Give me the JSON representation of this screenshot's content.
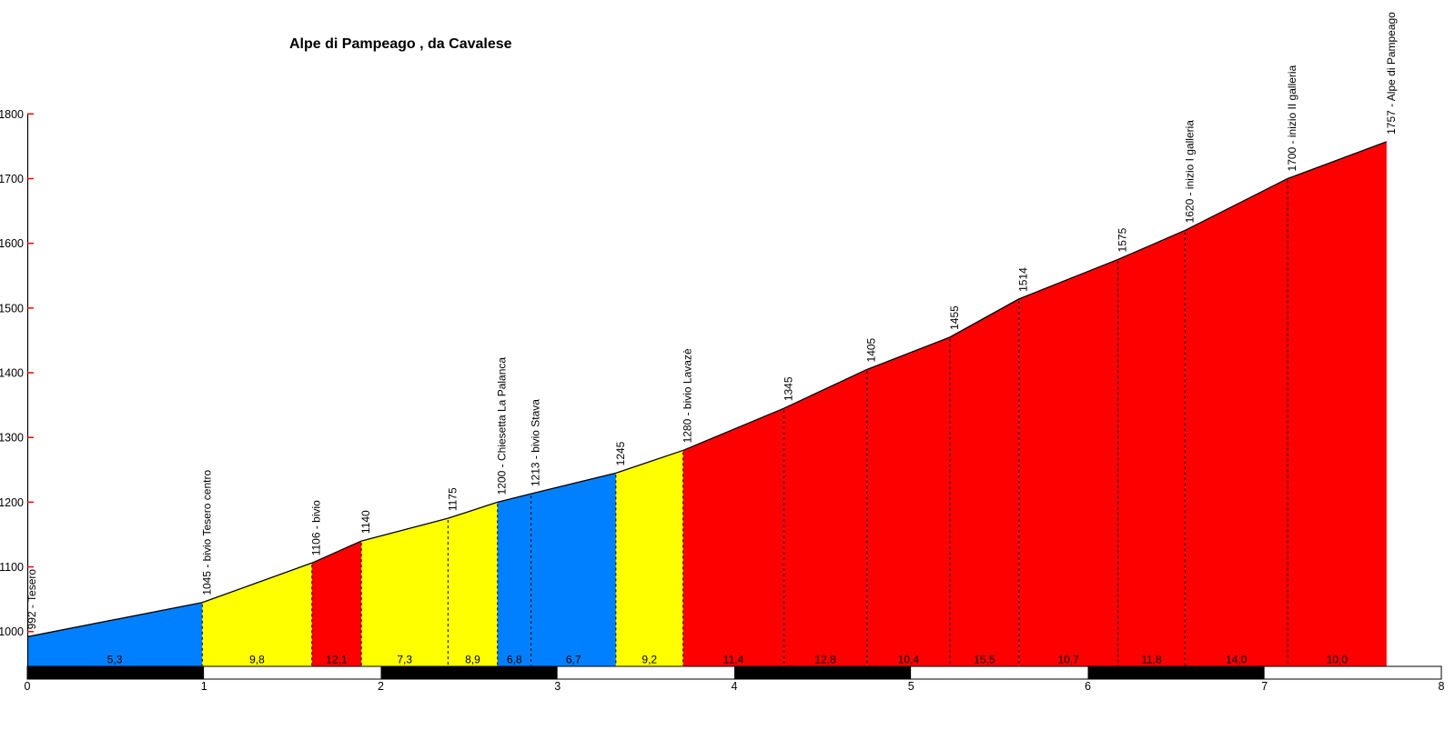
{
  "chart_data": {
    "type": "area",
    "title": "Alpe di Pampeago , da Cavalese",
    "xlabel": "",
    "ylabel": "",
    "x_unit": "km",
    "y_unit": "m",
    "xlim": [
      0,
      8
    ],
    "ylim": [
      946,
      1800
    ],
    "grid": "off",
    "legend": "none",
    "x_ticks": [
      "0",
      "1",
      "2",
      "3",
      "4",
      "5",
      "6",
      "7",
      "8"
    ],
    "y_ticks": [
      "1000",
      "1100",
      "1200",
      "1300",
      "1400",
      "1500",
      "1600",
      "1700",
      "1800"
    ],
    "points": [
      {
        "km": 0.0,
        "elevation": 992,
        "label": "992 - Tesero"
      },
      {
        "km": 0.99,
        "elevation": 1045,
        "label": "1045 - bivio Tesero centro"
      },
      {
        "km": 1.61,
        "elevation": 1106,
        "label": "1106 - bivio"
      },
      {
        "km": 1.89,
        "elevation": 1140,
        "label": "1140"
      },
      {
        "km": 2.38,
        "elevation": 1175,
        "label": "1175"
      },
      {
        "km": 2.66,
        "elevation": 1200,
        "label": "1200 - Chiesetta La Palanca"
      },
      {
        "km": 2.85,
        "elevation": 1213,
        "label": "1213 - bivio Stava"
      },
      {
        "km": 3.33,
        "elevation": 1245,
        "label": "1245"
      },
      {
        "km": 3.71,
        "elevation": 1280,
        "label": "1280 - bivio Lavazè"
      },
      {
        "km": 4.28,
        "elevation": 1345,
        "label": "1345"
      },
      {
        "km": 4.75,
        "elevation": 1405,
        "label": "1405"
      },
      {
        "km": 5.22,
        "elevation": 1455,
        "label": "1455"
      },
      {
        "km": 5.61,
        "elevation": 1514,
        "label": "1514"
      },
      {
        "km": 6.17,
        "elevation": 1575,
        "label": "1575"
      },
      {
        "km": 6.55,
        "elevation": 1620,
        "label": "1620 - inizio I galleria"
      },
      {
        "km": 7.13,
        "elevation": 1700,
        "label": "1700 - inizio II galleria"
      },
      {
        "km": 7.69,
        "elevation": 1757,
        "label": "1757 - Alpe di Pampeago"
      }
    ],
    "segments": [
      {
        "gradient": 5.3,
        "label": "5,3",
        "color": "blue"
      },
      {
        "gradient": 9.8,
        "label": "9,8",
        "color": "yellow"
      },
      {
        "gradient": 12.1,
        "label": "12,1",
        "color": "red"
      },
      {
        "gradient": 7.3,
        "label": "7,3",
        "color": "yellow"
      },
      {
        "gradient": 8.9,
        "label": "8,9",
        "color": "yellow"
      },
      {
        "gradient": 6.8,
        "label": "6,8",
        "color": "blue"
      },
      {
        "gradient": 6.7,
        "label": "6,7",
        "color": "blue"
      },
      {
        "gradient": 9.2,
        "label": "9,2",
        "color": "yellow"
      },
      {
        "gradient": 11.4,
        "label": "11,4",
        "color": "red"
      },
      {
        "gradient": 12.8,
        "label": "12,8",
        "color": "red"
      },
      {
        "gradient": 10.4,
        "label": "10,4",
        "color": "red"
      },
      {
        "gradient": 15.5,
        "label": "15,5",
        "color": "red"
      },
      {
        "gradient": 10.7,
        "label": "10,7",
        "color": "red"
      },
      {
        "gradient": 11.8,
        "label": "11,8",
        "color": "red"
      },
      {
        "gradient": 14.0,
        "label": "14,0",
        "color": "red"
      },
      {
        "gradient": 10.0,
        "label": "10,0",
        "color": "red"
      }
    ],
    "palette": {
      "blue": "#0080FF",
      "yellow": "#FFFF00",
      "red": "#FF0000",
      "outline": "#000000",
      "axis": "#000000",
      "y_tick_mark": "#FF0000",
      "text": "#000000",
      "axis_band_dark": "#000000",
      "axis_band_light": "#FFFFFF",
      "background": "#FFFFFF"
    }
  }
}
